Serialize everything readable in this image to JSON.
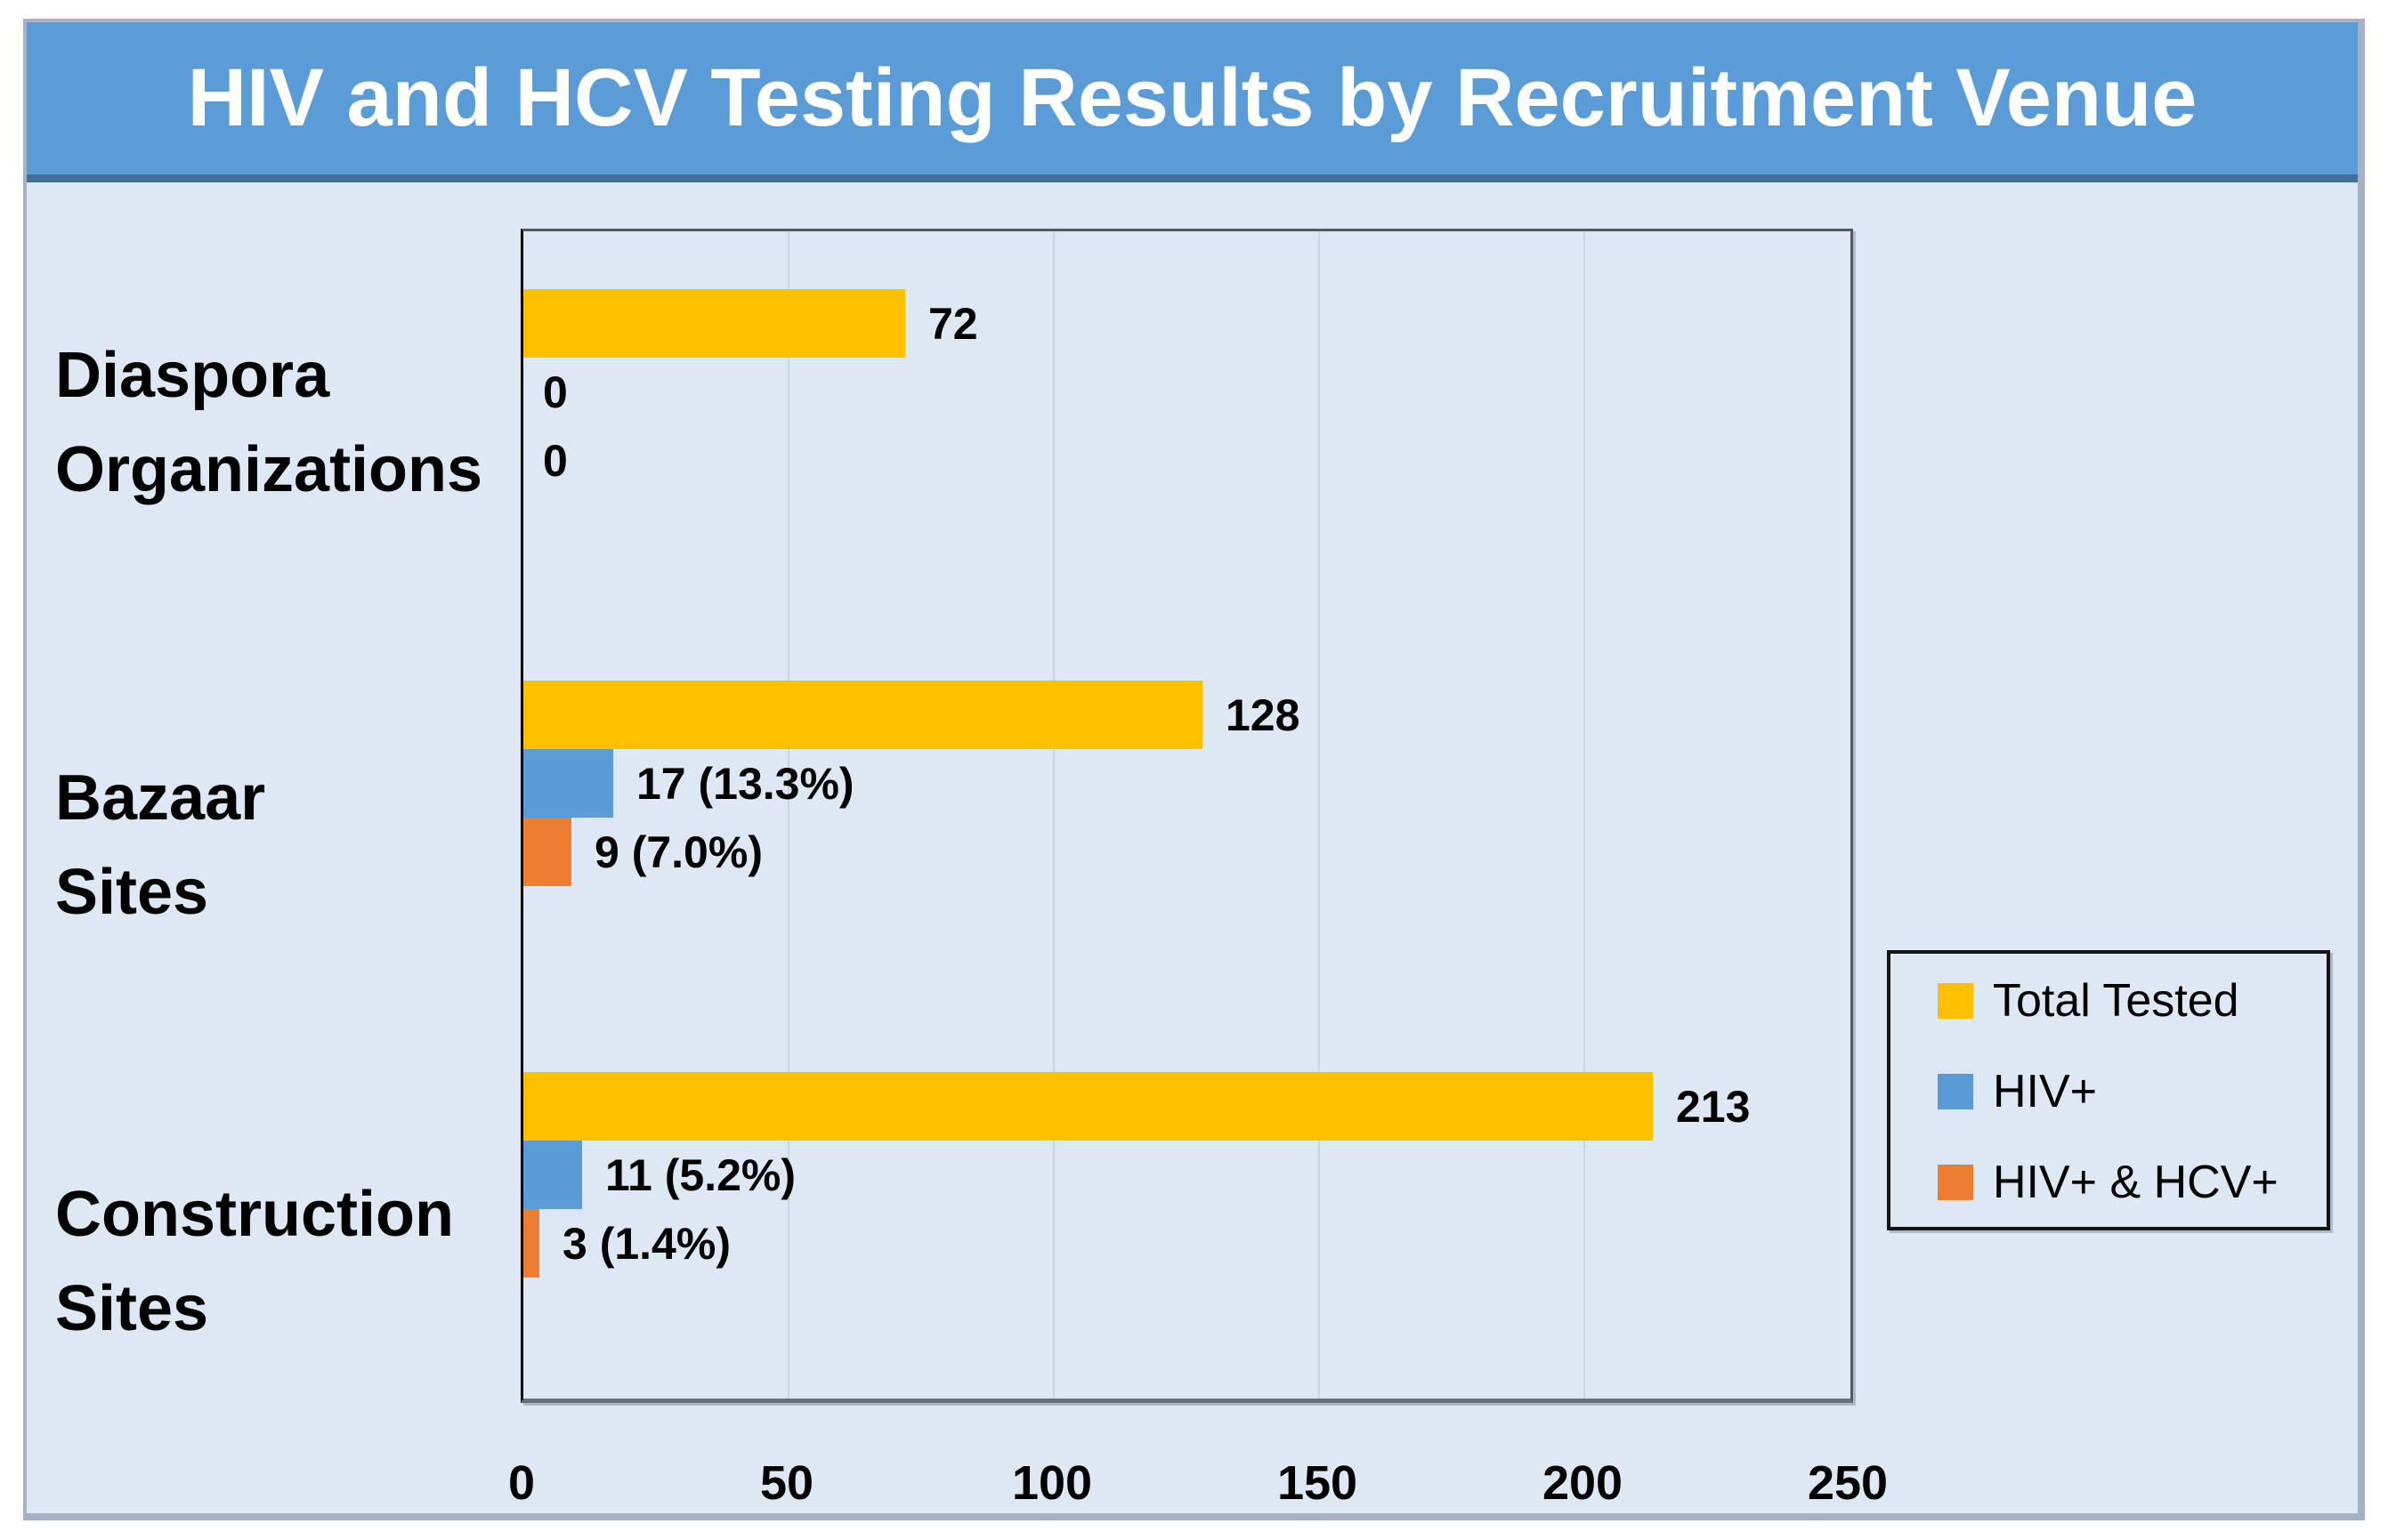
{
  "chart_data": {
    "type": "bar",
    "orientation": "horizontal",
    "title": "HIV and HCV Testing Results by Recruitment Venue",
    "categories": [
      "Diaspora Organizations",
      "Bazaar Sites",
      "Construction Sites"
    ],
    "category_lines": [
      [
        "Diaspora",
        "Organizations"
      ],
      [
        "Bazaar",
        "Sites"
      ],
      [
        "Construction",
        "Sites"
      ]
    ],
    "series": [
      {
        "name": "Total Tested",
        "color": "#FFC000",
        "values": [
          72,
          128,
          213
        ],
        "data_labels": [
          "72",
          "128",
          "213"
        ]
      },
      {
        "name": "HIV+",
        "color": "#5B9BD5",
        "values": [
          0,
          17,
          11
        ],
        "data_labels": [
          "0",
          "17 (13.3%)",
          "11 (5.2%)"
        ]
      },
      {
        "name": "HIV+ & HCV+",
        "color": "#ED7D31",
        "values": [
          0,
          9,
          3
        ],
        "data_labels": [
          "0",
          "9 (7.0%)",
          "3 (1.4%)"
        ]
      }
    ],
    "xlabel": "",
    "ylabel": "",
    "xlim": [
      0,
      250
    ],
    "xticks": [
      0,
      50,
      100,
      150,
      200,
      250
    ],
    "xtick_labels": [
      "0",
      "50",
      "100",
      "150",
      "200",
      "250"
    ],
    "grid": true,
    "legend_position": "right-middle"
  },
  "legend": {
    "entries": [
      {
        "label": "Total Tested",
        "color": "#FFC000"
      },
      {
        "label": "HIV+",
        "color": "#5B9BD5"
      },
      {
        "label": "HIV+ & HCV+",
        "color": "#ED7D31"
      }
    ]
  },
  "colors": {
    "title_banner": "#5B9CD6",
    "title_banner_underline": "#41719C",
    "title_text": "#FFFFFF",
    "background": "#DDE8F4",
    "page_background": "#FFFFFF",
    "frame_border": "#A6B1C3",
    "gridline": "#C9D4E3",
    "plot_border": "#54585E",
    "axis_line": "#000000",
    "label_text": "#000000",
    "legend_border": "#141414"
  }
}
